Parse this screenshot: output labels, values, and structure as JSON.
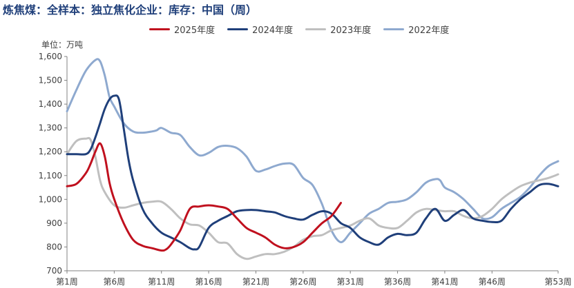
{
  "title": "炼焦煤：全样本：独立焦化企业：库存：中国（周）",
  "chart_data": {
    "type": "line",
    "title": "炼焦煤：全样本：独立焦化企业：库存：中国（周）",
    "ylabel": "单位：万吨",
    "ylim": [
      700,
      1600
    ],
    "yticks": [
      700,
      800,
      900,
      1000,
      1100,
      1200,
      1300,
      1400,
      1500,
      1600
    ],
    "ytick_labels": [
      "700",
      "800",
      "900",
      "1,000",
      "1,100",
      "1,200",
      "1,300",
      "1,400",
      "1,500",
      "1,600"
    ],
    "xlim": [
      1,
      53
    ],
    "xticks": [
      1,
      6,
      11,
      16,
      21,
      26,
      31,
      36,
      41,
      46,
      53
    ],
    "xtick_labels": [
      "第1周",
      "第6周",
      "第11周",
      "第16周",
      "第21周",
      "第26周",
      "第31周",
      "第36周",
      "第41周",
      "第46周",
      "第53周"
    ],
    "legend_position": "top-center",
    "grid": false,
    "series": [
      {
        "name": "2025年度",
        "color": "#c0101e",
        "x": [
          1,
          2,
          3,
          3.5,
          4,
          4.5,
          5,
          5.5,
          6,
          7,
          8,
          9,
          10,
          11,
          11.5,
          12,
          13,
          14,
          15,
          16,
          17,
          18,
          19,
          20,
          21,
          22,
          23,
          24,
          25,
          26,
          27,
          28,
          29,
          30
        ],
        "y": [
          1055,
          1065,
          1110,
          1150,
          1200,
          1235,
          1180,
          1070,
          1000,
          900,
          830,
          805,
          795,
          785,
          790,
          810,
          870,
          960,
          970,
          975,
          970,
          960,
          920,
          880,
          860,
          840,
          810,
          795,
          800,
          820,
          860,
          900,
          930,
          985
        ]
      },
      {
        "name": "2024年度",
        "color": "#1f3f7a",
        "x": [
          1,
          2,
          3,
          3.5,
          4,
          4.5,
          5,
          5.5,
          6,
          6.5,
          7,
          7.5,
          8,
          9,
          10,
          11,
          12,
          13,
          14,
          14.5,
          15,
          16,
          17,
          18,
          19,
          20,
          21,
          22,
          23,
          24,
          25,
          26,
          27,
          28,
          29,
          30,
          31,
          32,
          33,
          34,
          35,
          36,
          37,
          38,
          39,
          40,
          41,
          42,
          43,
          44,
          45,
          46,
          47,
          48,
          49,
          50,
          51,
          52,
          53
        ],
        "y": [
          1190,
          1190,
          1190,
          1210,
          1260,
          1320,
          1380,
          1420,
          1435,
          1420,
          1300,
          1170,
          1080,
          960,
          900,
          860,
          840,
          820,
          795,
          790,
          800,
          880,
          910,
          930,
          950,
          955,
          955,
          950,
          945,
          930,
          920,
          915,
          935,
          950,
          940,
          900,
          880,
          840,
          820,
          810,
          840,
          855,
          850,
          860,
          920,
          960,
          910,
          935,
          955,
          920,
          910,
          905,
          910,
          960,
          1000,
          1030,
          1060,
          1065,
          1055
        ]
      },
      {
        "name": "2023年度",
        "color": "#bfbfbf",
        "x": [
          1,
          2,
          3,
          3.5,
          4,
          4.5,
          5,
          6,
          7,
          8,
          9,
          10,
          11,
          12,
          13,
          14,
          15,
          16,
          17,
          18,
          19,
          20,
          21,
          22,
          23,
          24,
          25,
          26,
          27,
          28,
          29,
          30,
          31,
          32,
          33,
          34,
          35,
          36,
          37,
          38,
          39,
          40,
          41,
          42,
          43,
          44,
          45,
          46,
          47,
          48,
          49,
          50,
          51,
          52,
          53
        ],
        "y": [
          1190,
          1245,
          1255,
          1250,
          1180,
          1080,
          1030,
          975,
          965,
          975,
          985,
          990,
          990,
          960,
          920,
          895,
          890,
          860,
          820,
          815,
          770,
          750,
          760,
          770,
          770,
          780,
          800,
          830,
          845,
          850,
          870,
          880,
          890,
          910,
          920,
          890,
          880,
          880,
          910,
          945,
          960,
          955,
          950,
          950,
          930,
          920,
          930,
          960,
          1000,
          1030,
          1055,
          1070,
          1080,
          1090,
          1105
        ]
      },
      {
        "name": "2022年度",
        "color": "#8ea9cf",
        "x": [
          1,
          2,
          3,
          4,
          4.5,
          5,
          5.5,
          6,
          7,
          8,
          9,
          10,
          10.5,
          11,
          12,
          13,
          14,
          15,
          16,
          17,
          18,
          19,
          20,
          21,
          22,
          23,
          24,
          25,
          26,
          27,
          28,
          29,
          30,
          31,
          32,
          33,
          34,
          35,
          36,
          37,
          38,
          39,
          40,
          40.5,
          41,
          42,
          43,
          44,
          45,
          46,
          47,
          48,
          49,
          50,
          51,
          52,
          53
        ],
        "y": [
          1370,
          1460,
          1540,
          1585,
          1580,
          1520,
          1430,
          1390,
          1320,
          1285,
          1280,
          1285,
          1290,
          1300,
          1280,
          1270,
          1220,
          1185,
          1195,
          1220,
          1225,
          1215,
          1180,
          1120,
          1125,
          1140,
          1150,
          1145,
          1090,
          1060,
          980,
          870,
          820,
          860,
          900,
          940,
          960,
          985,
          990,
          1000,
          1030,
          1070,
          1085,
          1080,
          1050,
          1030,
          1000,
          960,
          920,
          925,
          960,
          985,
          1010,
          1050,
          1100,
          1140,
          1160
        ]
      }
    ]
  }
}
